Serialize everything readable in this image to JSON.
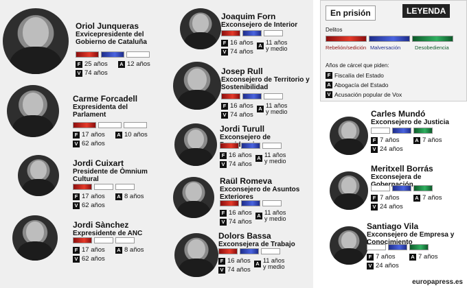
{
  "badge": "En prisión",
  "legend": {
    "title": "LEYENDA",
    "crimes_heading": "Delitos",
    "crimes": [
      "Rebelión/sedición",
      "Malversación",
      "Desobediencia"
    ],
    "years_heading": "Años de cárcel que piden:",
    "keys": [
      {
        "tag": "F",
        "label": "Fiscalía del Estado"
      },
      {
        "tag": "A",
        "label": "Abogacía del Estado"
      },
      {
        "tag": "V",
        "label": "Acusación popular de Vox"
      }
    ]
  },
  "people": [
    {
      "name": "Oriol Junqueras",
      "role": "Exvicepresidente del Gobierno de Cataluña",
      "crimes": [
        "red",
        "blue",
        "empty"
      ],
      "F": "25 años",
      "A": "12 años",
      "V": "74 años"
    },
    {
      "name": "Carme Forcadell",
      "role": "Expresidenta del Parlament",
      "crimes": [
        "red",
        "empty",
        "empty"
      ],
      "F": "17 años",
      "A": "10 años",
      "V": "62 años"
    },
    {
      "name": "Jordi Cuixart",
      "role": "Presidente de Òmnium Cultural",
      "crimes": [
        "red",
        "empty",
        "empty"
      ],
      "F": "17 años",
      "A": "8 años",
      "V": "62 años"
    },
    {
      "name": "Jordi Sànchez",
      "role": "Expresidente de ANC",
      "crimes": [
        "red",
        "empty",
        "empty"
      ],
      "F": "17 años",
      "A": "8 años",
      "V": "62 años"
    },
    {
      "name": "Joaquim Forn",
      "role": "Exconsejero de Interior",
      "crimes": [
        "red",
        "blue",
        "empty"
      ],
      "F": "16 años",
      "A": "11 años y medio",
      "V": "74 años"
    },
    {
      "name": "Josep Rull",
      "role": "Exconsejero de Territorio y Sostenibilidad",
      "crimes": [
        "red",
        "blue",
        "empty"
      ],
      "F": "16 años",
      "A": "11 años y medio",
      "V": "74 años"
    },
    {
      "name": "Jordi Turull",
      "role": "Exconsejero de Presidencia",
      "crimes": [
        "red",
        "blue",
        "empty"
      ],
      "F": "16 años",
      "A": "11 años y medio",
      "V": "74 años"
    },
    {
      "name": "Raül Romeva",
      "role": "Exconsejero de Asuntos Exteriores",
      "crimes": [
        "red",
        "blue",
        "empty"
      ],
      "F": "16 años",
      "A": "11 años y medio",
      "V": "74 años"
    },
    {
      "name": "Dolors Bassa",
      "role": "Exconsejera de Trabajo",
      "crimes": [
        "red",
        "blue",
        "empty"
      ],
      "F": "16 años",
      "A": "11 años y medio",
      "V": "74 años"
    },
    {
      "name": "Carles Mundó",
      "role": "Exconsejero de Justicia",
      "crimes": [
        "empty",
        "blue",
        "green"
      ],
      "F": "7 años",
      "A": "7 años",
      "V": "24 años"
    },
    {
      "name": "Meritxell Borrás",
      "role": "Exconsejera de Gobernación",
      "crimes": [
        "empty",
        "blue",
        "green"
      ],
      "F": "7 años",
      "A": "7 años",
      "V": "24 años"
    },
    {
      "name": "Santiago Vila",
      "role": "Exconsejero de Empresa y Conocimiento",
      "crimes": [
        "empty",
        "blue",
        "green"
      ],
      "F": "7 años",
      "A": "7 años",
      "V": "24 años"
    }
  ],
  "footer": "europapress.es"
}
